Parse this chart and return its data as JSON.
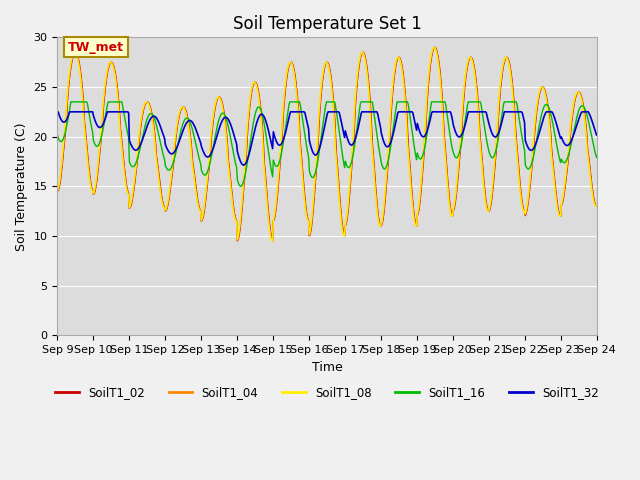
{
  "title": "Soil Temperature Set 1",
  "xlabel": "Time",
  "ylabel": "Soil Temperature (C)",
  "ylim": [
    0,
    30
  ],
  "annotation": "TW_met",
  "bg_color": "#dcdcdc",
  "fig_color": "#f0f0f0",
  "series_labels": [
    "SoilT1_02",
    "SoilT1_04",
    "SoilT1_08",
    "SoilT1_16",
    "SoilT1_32"
  ],
  "series_colors": [
    "#cc0000",
    "#ff8800",
    "#ffee00",
    "#00bb00",
    "#0000cc"
  ],
  "series_linewidths": [
    1.0,
    1.0,
    1.0,
    1.0,
    1.2
  ],
  "xtick_labels": [
    "Sep 9",
    "Sep 10",
    "Sep 11",
    "Sep 12",
    "Sep 13",
    "Sep 14",
    "Sep 15",
    "Sep 16",
    "Sep 17",
    "Sep 18",
    "Sep 19",
    "Sep 20",
    "Sep 21",
    "Sep 22",
    "Sep 23",
    "Sep 24"
  ],
  "xtick_positions": [
    0,
    1,
    2,
    3,
    4,
    5,
    6,
    7,
    8,
    9,
    10,
    11,
    12,
    13,
    14,
    15
  ],
  "ytick_positions": [
    0,
    5,
    10,
    15,
    20,
    25,
    30
  ],
  "title_fontsize": 12,
  "axis_fontsize": 9,
  "tick_fontsize": 8
}
